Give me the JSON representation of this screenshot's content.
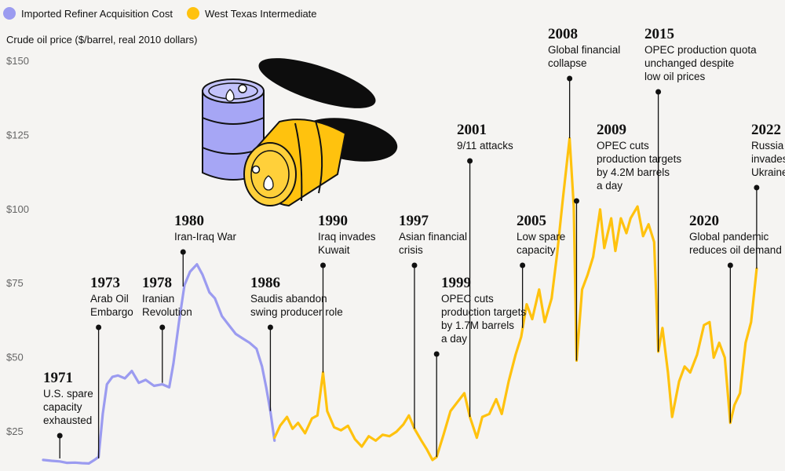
{
  "legend": {
    "items": [
      {
        "label": "Imported Refiner Acquisition Cost",
        "color": "#9b9bf0"
      },
      {
        "label": "West Texas Intermediate",
        "color": "#ffc20e"
      }
    ]
  },
  "axis": {
    "ylabel": "Crude oil price ($/barrel, real 2010 dollars)"
  },
  "chart_data": {
    "type": "line",
    "ylabel": "Crude oil price ($/barrel, real 2010 dollars)",
    "ylim": [
      13,
      153
    ],
    "xlim": [
      1970.6,
      2022.9
    ],
    "ytick_labels": [
      "$25",
      "$50",
      "$75",
      "$100",
      "$125",
      "$150"
    ],
    "ytick_values": [
      25,
      50,
      75,
      100,
      125,
      150
    ],
    "grid": false,
    "legend_position": "top-left",
    "series": [
      {
        "name": "Imported Refiner Acquisition Cost",
        "color": "#9b9bf0",
        "points": [
          [
            1970.6,
            15.5
          ],
          [
            1971.2,
            15.2
          ],
          [
            1971.8,
            15.0
          ],
          [
            1972.3,
            14.5
          ],
          [
            1972.9,
            14.6
          ],
          [
            1973.4,
            14.4
          ],
          [
            1973.9,
            14.3
          ],
          [
            1974.3,
            15.5
          ],
          [
            1974.6,
            16.5
          ],
          [
            1974.9,
            31
          ],
          [
            1975.2,
            41
          ],
          [
            1975.6,
            43.5
          ],
          [
            1976.0,
            44
          ],
          [
            1976.5,
            43
          ],
          [
            1977.0,
            45.5
          ],
          [
            1977.5,
            41.5
          ],
          [
            1978.0,
            42.5
          ],
          [
            1978.6,
            40.5
          ],
          [
            1979.2,
            41
          ],
          [
            1979.7,
            40
          ],
          [
            1980.0,
            48
          ],
          [
            1980.4,
            62
          ],
          [
            1980.8,
            74.5
          ],
          [
            1981.2,
            79
          ],
          [
            1981.7,
            81.5
          ],
          [
            1982.1,
            78
          ],
          [
            1982.6,
            72
          ],
          [
            1983.0,
            70
          ],
          [
            1983.5,
            64
          ],
          [
            1984.0,
            61
          ],
          [
            1984.5,
            58
          ],
          [
            1985.0,
            56.5
          ],
          [
            1985.5,
            55
          ],
          [
            1986.0,
            53
          ],
          [
            1986.4,
            47
          ],
          [
            1986.7,
            40
          ],
          [
            1987.0,
            32
          ],
          [
            1987.3,
            22
          ]
        ]
      },
      {
        "name": "West Texas Intermediate",
        "color": "#ffc20e",
        "points": [
          [
            1987.3,
            23
          ],
          [
            1987.7,
            27
          ],
          [
            1988.2,
            30
          ],
          [
            1988.6,
            26
          ],
          [
            1989.0,
            28
          ],
          [
            1989.5,
            24.5
          ],
          [
            1990.0,
            29.5
          ],
          [
            1990.4,
            30.5
          ],
          [
            1990.8,
            45
          ],
          [
            1991.1,
            32
          ],
          [
            1991.6,
            26.5
          ],
          [
            1992.1,
            25.5
          ],
          [
            1992.6,
            27
          ],
          [
            1993.1,
            22.5
          ],
          [
            1993.6,
            20
          ],
          [
            1994.1,
            23.5
          ],
          [
            1994.6,
            22
          ],
          [
            1995.1,
            24
          ],
          [
            1995.6,
            23.5
          ],
          [
            1996.1,
            25
          ],
          [
            1996.6,
            27.5
          ],
          [
            1997.0,
            30.5
          ],
          [
            1997.4,
            26
          ],
          [
            1997.9,
            22
          ],
          [
            1998.3,
            19
          ],
          [
            1998.7,
            15.5
          ],
          [
            1999.0,
            16.5
          ],
          [
            1999.5,
            24
          ],
          [
            2000.0,
            32
          ],
          [
            2000.5,
            35
          ],
          [
            2001.0,
            38
          ],
          [
            2001.4,
            30
          ],
          [
            2001.9,
            23
          ],
          [
            2002.3,
            30
          ],
          [
            2002.8,
            31
          ],
          [
            2003.3,
            36
          ],
          [
            2003.7,
            31
          ],
          [
            2004.2,
            42
          ],
          [
            2004.7,
            51
          ],
          [
            2005.1,
            57
          ],
          [
            2005.5,
            68
          ],
          [
            2005.9,
            63
          ],
          [
            2006.4,
            73
          ],
          [
            2006.8,
            62
          ],
          [
            2007.3,
            70
          ],
          [
            2007.7,
            85
          ],
          [
            2008.1,
            103
          ],
          [
            2008.6,
            124
          ],
          [
            2008.9,
            101
          ],
          [
            2009.1,
            49
          ],
          [
            2009.5,
            73
          ],
          [
            2009.9,
            78
          ],
          [
            2010.3,
            84
          ],
          [
            2010.8,
            100
          ],
          [
            2011.1,
            87
          ],
          [
            2011.6,
            97
          ],
          [
            2011.9,
            86
          ],
          [
            2012.3,
            97
          ],
          [
            2012.7,
            92
          ],
          [
            2013.0,
            97
          ],
          [
            2013.5,
            101
          ],
          [
            2013.9,
            91
          ],
          [
            2014.3,
            95
          ],
          [
            2014.7,
            89
          ],
          [
            2015.0,
            52
          ],
          [
            2015.3,
            60
          ],
          [
            2015.7,
            45
          ],
          [
            2016.0,
            30
          ],
          [
            2016.5,
            42
          ],
          [
            2016.9,
            47
          ],
          [
            2017.3,
            45
          ],
          [
            2017.8,
            51
          ],
          [
            2018.3,
            61
          ],
          [
            2018.7,
            62
          ],
          [
            2019.0,
            50
          ],
          [
            2019.4,
            55
          ],
          [
            2019.8,
            50
          ],
          [
            2020.2,
            28
          ],
          [
            2020.5,
            34
          ],
          [
            2020.9,
            38
          ],
          [
            2021.3,
            55
          ],
          [
            2021.7,
            62
          ],
          [
            2022.1,
            80
          ]
        ]
      }
    ],
    "annotations": [
      {
        "year": "1971",
        "lines": [
          "U.S. spare",
          "capacity",
          "exhausted"
        ],
        "x": 1971.8,
        "y": 16.0
      },
      {
        "year": "1973",
        "lines": [
          "Arab Oil",
          "Embargo"
        ],
        "x": 1974.6,
        "y": 16.0
      },
      {
        "year": "1978",
        "lines": [
          "Iranian",
          "Revolution"
        ],
        "x": 1979.2,
        "y": 41.5
      },
      {
        "year": "1980",
        "lines": [
          "Iran-Iraq War"
        ],
        "x": 1980.7,
        "y": 74.0
      },
      {
        "year": "1986",
        "lines": [
          "Saudis abandon",
          "swing producer role"
        ],
        "x": 1987.0,
        "y": 32.0
      },
      {
        "year": "1990",
        "lines": [
          "Iraq invades",
          "Kuwait"
        ],
        "x": 1990.8,
        "y": 45.0
      },
      {
        "year": "1997",
        "lines": [
          "Asian financial",
          "crisis"
        ],
        "x": 1997.4,
        "y": 26.0
      },
      {
        "year": "1999",
        "lines": [
          "OPEC cuts",
          "production targets",
          "by 1.7M barrels",
          "a day"
        ],
        "x": 1999.0,
        "y": 16.5
      },
      {
        "year": "2001",
        "lines": [
          "9/11 attacks"
        ],
        "x": 2001.4,
        "y": 30.0
      },
      {
        "year": "2005",
        "lines": [
          "Low spare",
          "capacity"
        ],
        "x": 2005.2,
        "y": 60.0
      },
      {
        "year": "2008",
        "lines": [
          "Global financial",
          "collapse"
        ],
        "x": 2008.6,
        "y": 124.0
      },
      {
        "year": "2009",
        "lines": [
          "OPEC cuts",
          "production targets",
          "by 4.2M barrels",
          "a day"
        ],
        "x": 2009.1,
        "y": 49.0
      },
      {
        "year": "2015",
        "lines": [
          "OPEC production quota",
          "unchanged despite",
          "low oil prices"
        ],
        "x": 2015.0,
        "y": 52.0
      },
      {
        "year": "2020",
        "lines": [
          "Global pandemic",
          "reduces oil demand"
        ],
        "x": 2020.2,
        "y": 28.0
      },
      {
        "year": "2022",
        "lines": [
          "Russia",
          "invades",
          "Ukraine"
        ],
        "x": 2022.1,
        "y": 80.0
      }
    ]
  }
}
